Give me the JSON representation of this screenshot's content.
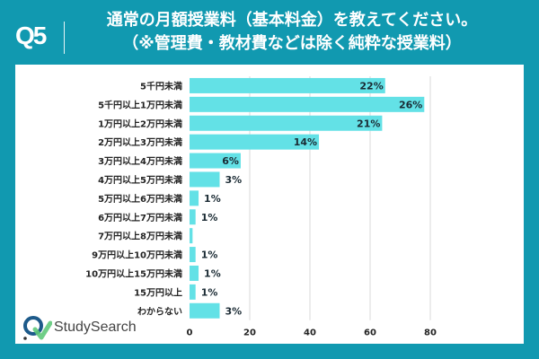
{
  "header": {
    "question_number": "Q5",
    "title_line1": "通常の月額授業料（基本料金）を教えてください。",
    "title_line2": "（※管理費・教材費などは除く純粋な授業料）"
  },
  "branding": {
    "logo_text": "StudySearch",
    "icon": "magnifier-check-icon"
  },
  "colors": {
    "background": "#1199b0",
    "bar": "#63e1e6",
    "panel": "#ffffff",
    "gridline": "#d9d9d9"
  },
  "chart_data": {
    "type": "bar",
    "orientation": "horizontal",
    "title": "通常の月額授業料（基本料金）を教えてください。（※管理費・教材費などは除く純粋な授業料）",
    "xlabel": "",
    "ylabel": "",
    "xlim": [
      0,
      80
    ],
    "xticks": [
      0,
      20,
      40,
      60,
      80
    ],
    "grid": true,
    "categories": [
      "5千円未満",
      "5千円以上1万円未満",
      "1万円以上2万円未満",
      "2万円以上3万円未満",
      "3万円以上4万円未満",
      "4万円以上5万円未満",
      "5万円以上6万円未満",
      "6万円以上7万円未満",
      "7万円以上8万円未満",
      "9万円以上10万円未満",
      "10万円以上15万円未満",
      "15万円以上",
      "わからない"
    ],
    "values": [
      65,
      78,
      64,
      43,
      17,
      10,
      3,
      2,
      1,
      2,
      3,
      2,
      10
    ],
    "data_labels": [
      "22%",
      "26%",
      "21%",
      "14%",
      "6%",
      "3%",
      "1%",
      "1%",
      "",
      "1%",
      "1%",
      "1%",
      "3%"
    ]
  }
}
